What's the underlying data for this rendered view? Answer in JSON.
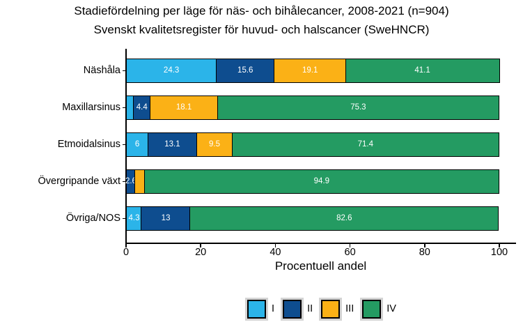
{
  "chart_data": {
    "type": "bar",
    "orientation": "horizontal",
    "stacked": true,
    "title": "Stadiefördelning per läge för näs- och bihålecancer, 2008-2021 (n=904)",
    "subtitle": "Svenskt kvalitetsregister för huvud- och halscancer (SweHNCR)",
    "xlabel": "Procentuell andel",
    "xlim": [
      0,
      100
    ],
    "xticks": [
      0,
      20,
      40,
      60,
      80,
      100
    ],
    "grid": false,
    "legend_position": "bottom",
    "categories": [
      "Näshåla",
      "Maxillarsinus",
      "Etmoidalsinus",
      "Övergripande växt",
      "Övriga/NOS"
    ],
    "series": [
      {
        "name": "I",
        "color": "#2BB4E9",
        "values": [
          24.3,
          2.2,
          6.0,
          0.0,
          4.3
        ],
        "labels": [
          "24.3",
          "",
          "6",
          "",
          "4.3"
        ]
      },
      {
        "name": "II",
        "color": "#0E4D8F",
        "values": [
          15.6,
          4.4,
          13.1,
          2.6,
          13.0
        ],
        "labels": [
          "15.6",
          "4.4",
          "13.1",
          "2.6",
          "13"
        ]
      },
      {
        "name": "III",
        "color": "#FBB116",
        "values": [
          19.1,
          18.1,
          9.5,
          2.5,
          0.0
        ],
        "labels": [
          "19.1",
          "18.1",
          "9.5",
          "",
          ""
        ]
      },
      {
        "name": "IV",
        "color": "#249B62",
        "values": [
          41.1,
          75.3,
          71.4,
          94.9,
          82.6
        ],
        "labels": [
          "41.1",
          "75.3",
          "71.4",
          "94.9",
          "82.6"
        ]
      }
    ],
    "colors": {
      "axis": "#000000",
      "bar_border": "#000000",
      "bar_label_text": "#ffffff",
      "legend_key_bg": "#d4d4d4"
    }
  }
}
